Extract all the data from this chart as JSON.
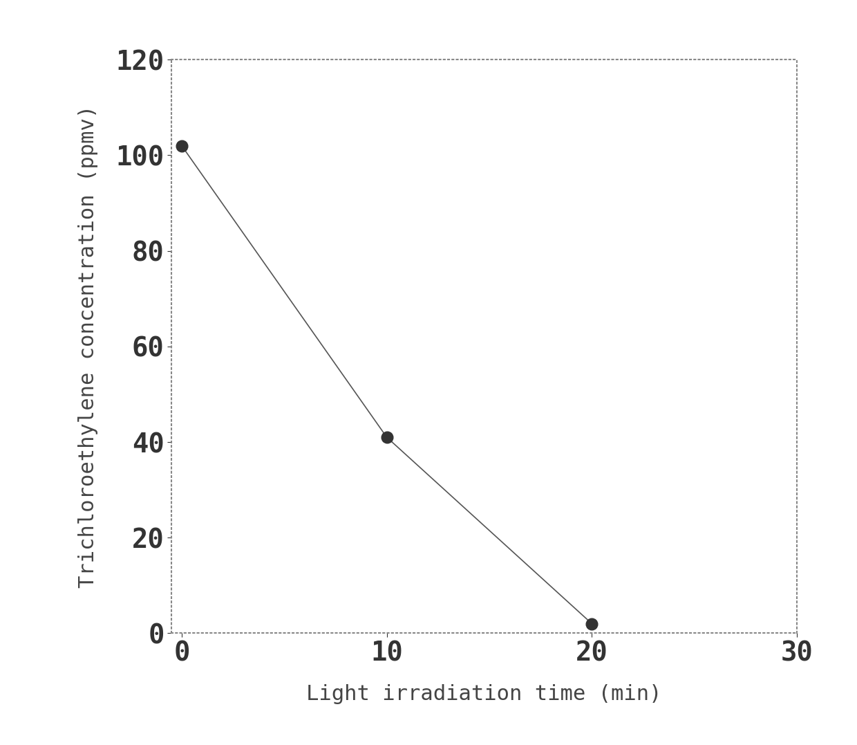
{
  "x": [
    0,
    10,
    20
  ],
  "y": [
    102,
    41,
    2
  ],
  "xlabel": "Light irradiation time (min)",
  "ylabel": "Trichloroethylene concentration (ppmv)",
  "xlim": [
    -0.5,
    30
  ],
  "ylim": [
    0,
    120
  ],
  "xticks": [
    0,
    10,
    20,
    30
  ],
  "yticks": [
    0,
    20,
    40,
    60,
    80,
    100,
    120
  ],
  "line_color": "#555555",
  "marker_color": "#333333",
  "marker_size": 12,
  "line_width": 1.2,
  "background_color": "#ffffff",
  "border_color": "#888888",
  "tick_color": "#333333",
  "label_color": "#444444",
  "font_size_ticks": 28,
  "font_size_labels": 22,
  "font_size_ylabel": 22
}
